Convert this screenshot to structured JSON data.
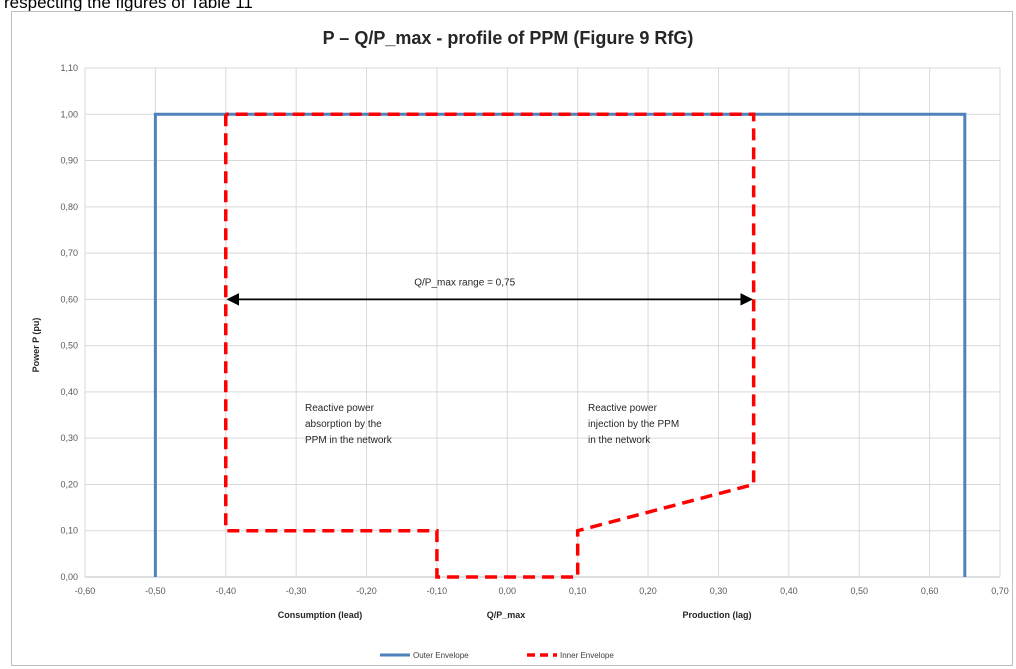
{
  "page_heading": "respecting the figures of Table 11",
  "chart_data": {
    "type": "line",
    "title": "P – Q/P_max - profile of PPM (Figure 9 RfG)",
    "xlabel": "Q/P_max",
    "ylabel": "Power  P (pu)",
    "x_sublabels": {
      "left": "Consumption (lead)",
      "right": "Production (lag)"
    },
    "xlim": [
      -0.6,
      0.7
    ],
    "ylim": [
      0,
      1.1
    ],
    "x_ticks": [
      "-0,60",
      "-0,50",
      "-0,40",
      "-0,30",
      "-0,20",
      "-0,10",
      "0,00",
      "0,10",
      "0,20",
      "0,30",
      "0,40",
      "0,50",
      "0,60",
      "0,70"
    ],
    "x_tick_values": [
      -0.6,
      -0.5,
      -0.4,
      -0.3,
      -0.2,
      -0.1,
      0,
      0.1,
      0.2,
      0.3,
      0.4,
      0.5,
      0.6,
      0.7
    ],
    "y_ticks": [
      "0,00",
      "0,10",
      "0,20",
      "0,30",
      "0,40",
      "0,50",
      "0,60",
      "0,70",
      "0,80",
      "0,90",
      "1,00",
      "1,10"
    ],
    "y_tick_values": [
      0,
      0.1,
      0.2,
      0.3,
      0.4,
      0.5,
      0.6,
      0.7,
      0.8,
      0.9,
      1.0,
      1.1
    ],
    "grid": true,
    "legend_position": "bottom",
    "series": [
      {
        "name": "Outer Envelope",
        "color": "#4f81bd",
        "style": "solid",
        "x": [
          -0.5,
          -0.5,
          0.65,
          0.65
        ],
        "y": [
          0,
          1.0,
          1.0,
          0
        ]
      },
      {
        "name": "Inner Envelope",
        "color": "#ff0000",
        "style": "dashed",
        "x": [
          -0.4,
          -0.4,
          -0.1,
          -0.1,
          0.1,
          0.1,
          0.35,
          0.35,
          -0.4
        ],
        "y": [
          1.0,
          0.1,
          0.1,
          0,
          0,
          0.1,
          0.2,
          1.0,
          1.0
        ]
      }
    ],
    "annotations": [
      {
        "text": "Q/P_max range = 0,75",
        "arrow": {
          "x1": -0.4,
          "x2": 0.35,
          "y": 0.6
        }
      },
      {
        "lines": [
          "Reactive power",
          "absorption by the",
          "PPM in the network"
        ]
      },
      {
        "lines": [
          "Reactive power",
          "injection by the PPM",
          "in the network"
        ]
      }
    ]
  }
}
